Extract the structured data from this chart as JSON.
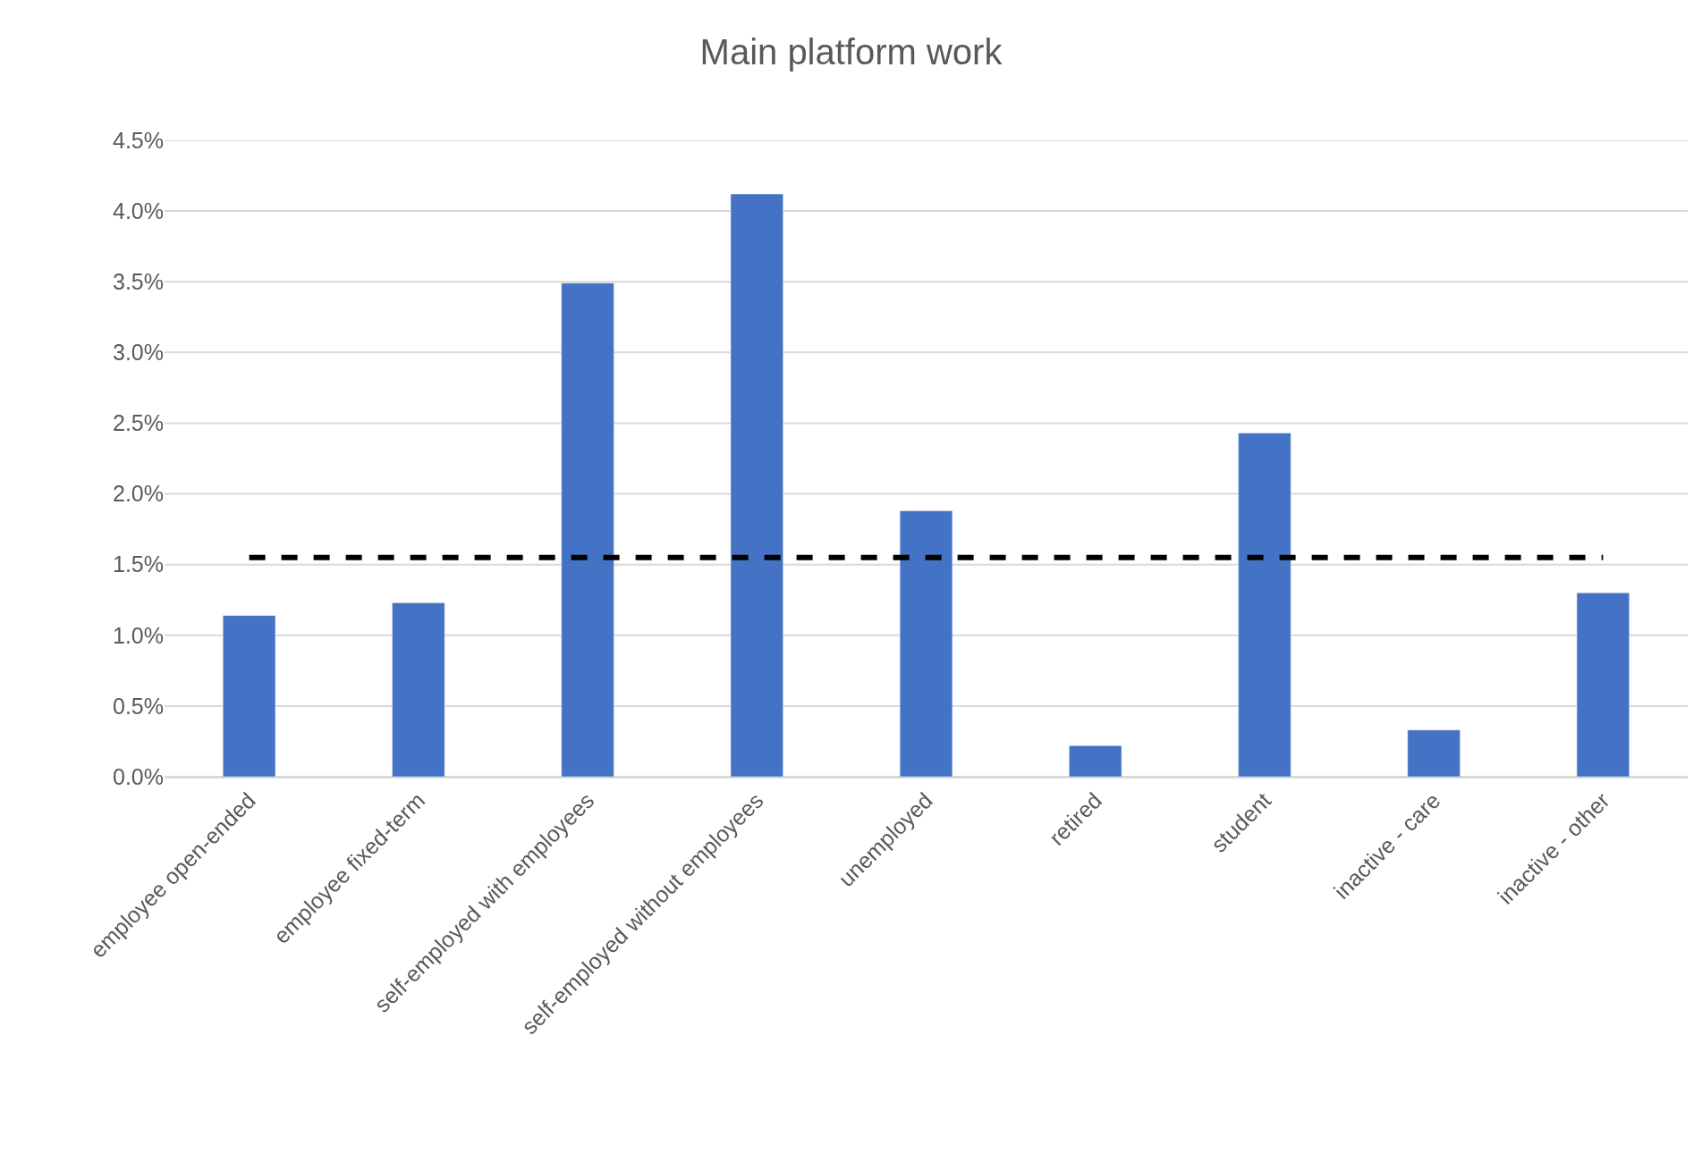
{
  "chart_data": {
    "type": "bar",
    "title": "Main platform work",
    "categories": [
      "employee open-ended",
      "employee fixed-term",
      "self-employed with employees",
      "self-employed without employees",
      "unemployed",
      "retired",
      "student",
      "inactive - care",
      "inactive - other"
    ],
    "series": [
      {
        "color": "#4472c4",
        "values": [
          1.14,
          1.23,
          3.49,
          4.12,
          1.88,
          0.22,
          2.43,
          0.33,
          1.3
        ]
      },
      {
        "type": "line",
        "color": "#000000",
        "line_style": "dashed",
        "marker": "none",
        "values": [
          1.55,
          1.55,
          1.55,
          1.55,
          1.55,
          1.55,
          1.55,
          1.55,
          1.55
        ]
      }
    ],
    "ylim": [
      0,
      4.5
    ],
    "yticks": [
      {
        "value": 0,
        "label": "0.0%"
      },
      {
        "value": 0.5,
        "label": "0.5%"
      },
      {
        "value": 1,
        "label": "1.0%"
      },
      {
        "value": 1.5,
        "label": "1.5%"
      },
      {
        "value": 2,
        "label": "2.0%"
      },
      {
        "value": 2.5,
        "label": "2.5%"
      },
      {
        "value": 3,
        "label": "3.0%"
      },
      {
        "value": 3.5,
        "label": "3.5%"
      },
      {
        "value": 4,
        "label": "4.0%"
      },
      {
        "value": 4.5,
        "label": "4.5%"
      }
    ],
    "grid": "y"
  }
}
